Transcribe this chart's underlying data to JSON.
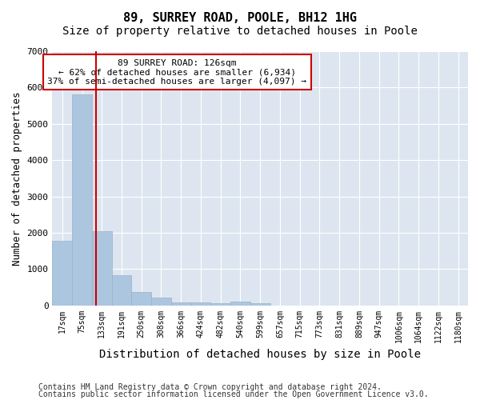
{
  "title": "89, SURREY ROAD, POOLE, BH12 1HG",
  "subtitle": "Size of property relative to detached houses in Poole",
  "xlabel": "Distribution of detached houses by size in Poole",
  "ylabel": "Number of detached properties",
  "bin_labels": [
    "17sqm",
    "75sqm",
    "133sqm",
    "191sqm",
    "250sqm",
    "308sqm",
    "366sqm",
    "424sqm",
    "482sqm",
    "540sqm",
    "599sqm",
    "657sqm",
    "715sqm",
    "773sqm",
    "831sqm",
    "889sqm",
    "947sqm",
    "1006sqm",
    "1064sqm",
    "1122sqm",
    "1180sqm"
  ],
  "bar_values": [
    1780,
    5800,
    2050,
    820,
    375,
    210,
    90,
    90,
    55,
    100,
    55,
    0,
    0,
    0,
    0,
    0,
    0,
    0,
    0,
    0,
    0
  ],
  "bar_color": "#adc6e0",
  "bar_edge_color": "#9ab0c8",
  "property_line_color": "#cc0000",
  "annotation_text": "89 SURREY ROAD: 126sqm\n← 62% of detached houses are smaller (6,934)\n37% of semi-detached houses are larger (4,097) →",
  "annotation_box_color": "#ffffff",
  "annotation_box_edge": "#cc0000",
  "ylim": [
    0,
    7000
  ],
  "yticks": [
    0,
    1000,
    2000,
    3000,
    4000,
    5000,
    6000,
    7000
  ],
  "plot_bg_color": "#dde6f0",
  "grid_color": "#ffffff",
  "footer_line1": "Contains HM Land Registry data © Crown copyright and database right 2024.",
  "footer_line2": "Contains public sector information licensed under the Open Government Licence v3.0.",
  "title_fontsize": 11,
  "subtitle_fontsize": 10,
  "axis_label_fontsize": 9,
  "tick_fontsize": 7,
  "annotation_fontsize": 8,
  "footer_fontsize": 7
}
